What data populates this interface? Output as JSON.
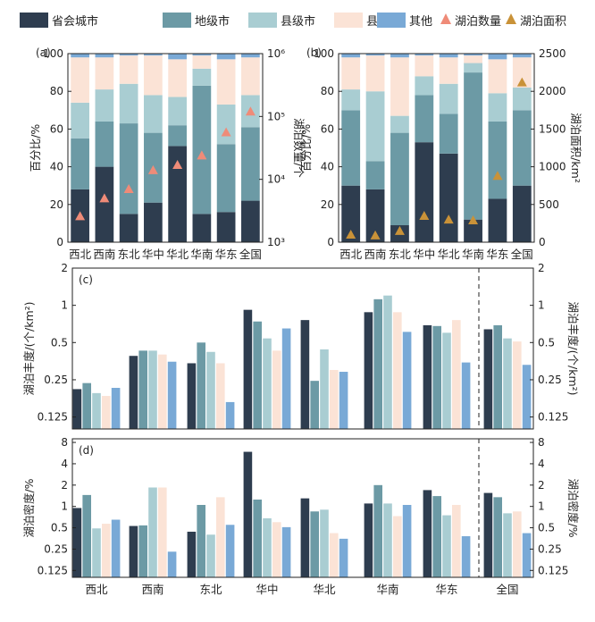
{
  "figure": {
    "legend": [
      {
        "label": "省会城市",
        "color": "#2e3d4f",
        "shape": "rect"
      },
      {
        "label": "地级市",
        "color": "#6c9aa5",
        "shape": "rect"
      },
      {
        "label": "县级市",
        "color": "#a9cdd2",
        "shape": "rect"
      },
      {
        "label": "县",
        "color": "#fbe3d6",
        "shape": "rect"
      },
      {
        "label": "其他",
        "color": "#79a9d6",
        "shape": "rect"
      },
      {
        "label": "湖泊数量",
        "color": "#ef8b78",
        "shape": "triangle"
      },
      {
        "label": "湖泊面积",
        "color": "#c99238",
        "shape": "triangle"
      }
    ]
  },
  "chart_data": [
    {
      "panel": "(a)",
      "type": "bar",
      "stacked": true,
      "categories": [
        "西北",
        "西南",
        "东北",
        "华中",
        "华北",
        "华南",
        "华东",
        "全国"
      ],
      "ylabel": "百分比/%",
      "ylim": [
        0,
        100
      ],
      "yticks": [
        0,
        20,
        40,
        60,
        80,
        100
      ],
      "series": [
        {
          "name": "省会城市",
          "values": [
            28,
            40,
            15,
            21,
            51,
            15,
            16,
            22
          ]
        },
        {
          "name": "地级市",
          "values": [
            27,
            24,
            48,
            37,
            11,
            68,
            36,
            39
          ]
        },
        {
          "name": "县级市",
          "values": [
            19,
            17,
            21,
            20,
            15,
            9,
            21,
            17
          ]
        },
        {
          "name": "县",
          "values": [
            24,
            17,
            15,
            21,
            20,
            7,
            24,
            20
          ]
        },
        {
          "name": "其他",
          "values": [
            2,
            2,
            1,
            1,
            3,
            1,
            3,
            2
          ]
        }
      ],
      "y2label": "湖泊数量/个",
      "y2scale": "log",
      "y2lim": [
        1000,
        1000000
      ],
      "y2ticks": [
        "10³",
        "10⁴",
        "10⁵",
        "10⁶"
      ],
      "markers": {
        "name": "湖泊数量",
        "values": [
          2600,
          5000,
          7000,
          14000,
          17000,
          24000,
          56000,
          120000
        ]
      }
    },
    {
      "panel": "(b)",
      "type": "bar",
      "stacked": true,
      "categories": [
        "西北",
        "西南",
        "东北",
        "华中",
        "华北",
        "华南",
        "华东",
        "全国"
      ],
      "ylabel": "百分比/%",
      "ylim": [
        0,
        100
      ],
      "yticks": [
        0,
        20,
        40,
        60,
        80,
        100
      ],
      "series": [
        {
          "name": "省会城市",
          "values": [
            30,
            28,
            9,
            53,
            47,
            12,
            23,
            30
          ]
        },
        {
          "name": "地级市",
          "values": [
            40,
            15,
            49,
            25,
            21,
            78,
            41,
            40
          ]
        },
        {
          "name": "县级市",
          "values": [
            11,
            37,
            9,
            10,
            16,
            5,
            15,
            12
          ]
        },
        {
          "name": "县",
          "values": [
            17,
            19,
            31,
            11,
            14,
            4,
            18,
            16
          ]
        },
        {
          "name": "其他",
          "values": [
            2,
            1,
            2,
            1,
            2,
            1,
            3,
            2
          ]
        }
      ],
      "y2label": "湖泊面积/km²",
      "y2lim": [
        0,
        2500
      ],
      "y2ticks": [
        0,
        500,
        1000,
        1500,
        2000,
        2500
      ],
      "markers": {
        "name": "湖泊面积",
        "values": [
          100,
          90,
          150,
          350,
          300,
          290,
          880,
          2120
        ]
      }
    },
    {
      "panel": "(c)",
      "type": "bar",
      "categories": [
        "西北",
        "西南",
        "东北",
        "华中",
        "华北",
        "华南",
        "华东",
        "全国"
      ],
      "ylabel": "湖泊丰度/(个/km²)",
      "y2label": "湖泊丰度/(个/km²)",
      "yscale": "log2",
      "ylim": [
        0.1,
        2
      ],
      "yticks": [
        "0.125",
        "0.25",
        "0.5",
        "1",
        "2"
      ],
      "series": [
        {
          "name": "省会城市",
          "values": [
            0.21,
            0.39,
            0.34,
            0.92,
            0.76,
            0.88,
            0.69,
            0.64
          ]
        },
        {
          "name": "地级市",
          "values": [
            0.235,
            0.43,
            0.5,
            0.74,
            0.245,
            1.12,
            0.68,
            0.69
          ]
        },
        {
          "name": "县级市",
          "values": [
            0.195,
            0.43,
            0.42,
            0.54,
            0.44,
            1.2,
            0.6,
            0.54
          ]
        },
        {
          "name": "县",
          "values": [
            0.185,
            0.4,
            0.34,
            0.43,
            0.3,
            0.88,
            0.76,
            0.51
          ]
        },
        {
          "name": "其他",
          "values": [
            0.215,
            0.35,
            0.165,
            0.65,
            0.29,
            0.61,
            0.345,
            0.33
          ]
        }
      ]
    },
    {
      "panel": "(d)",
      "type": "bar",
      "categories": [
        "西北",
        "西南",
        "东北",
        "华中",
        "华北",
        "华南",
        "华东",
        "全国"
      ],
      "ylabel": "湖泊密度/%",
      "y2label": "湖泊密度/%",
      "yscale": "log2",
      "ylim": [
        0.1,
        9
      ],
      "yticks": [
        "0.125",
        "0.25",
        "0.5",
        "1",
        "2",
        "4",
        "8"
      ],
      "series": [
        {
          "name": "省会城市",
          "values": [
            0.95,
            0.53,
            0.44,
            5.9,
            1.3,
            1.1,
            1.7,
            1.55
          ]
        },
        {
          "name": "地级市",
          "values": [
            1.45,
            0.54,
            1.05,
            1.25,
            0.85,
            2.0,
            1.4,
            1.35
          ]
        },
        {
          "name": "县级市",
          "values": [
            0.49,
            1.85,
            0.4,
            0.68,
            0.9,
            1.1,
            0.75,
            0.8
          ]
        },
        {
          "name": "县",
          "values": [
            0.57,
            1.85,
            1.35,
            0.6,
            0.42,
            0.73,
            1.05,
            0.85
          ]
        },
        {
          "name": "其他",
          "values": [
            0.65,
            0.23,
            0.55,
            0.51,
            0.35,
            1.05,
            0.38,
            0.42
          ]
        }
      ]
    }
  ]
}
